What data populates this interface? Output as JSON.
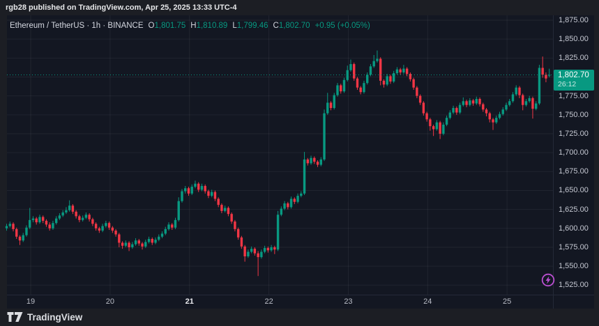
{
  "header": {
    "text": "rgb28 published on TradingView.com, Apr 25, 2025 13:33 UTC-4"
  },
  "legend": {
    "title": "Ethereum / TetherUS · 1h · BINANCE",
    "ohlc": [
      {
        "label": "O",
        "value": "1,801.75"
      },
      {
        "label": "H",
        "value": "1,810.89"
      },
      {
        "label": "L",
        "value": "1,799.46"
      },
      {
        "label": "C",
        "value": "1,802.70"
      }
    ],
    "change": "+0.95 (+0.05%)"
  },
  "last_price": {
    "value": "1,802.70",
    "countdown": "26:12"
  },
  "price_axis": {
    "labels": [
      {
        "text": "1,875.00",
        "price": 1875
      },
      {
        "text": "1,850.00",
        "price": 1850
      },
      {
        "text": "1,825.00",
        "price": 1825
      },
      {
        "text": "1,775.00",
        "price": 1775
      },
      {
        "text": "1,750.00",
        "price": 1750
      },
      {
        "text": "1,725.00",
        "price": 1725
      },
      {
        "text": "1,700.00",
        "price": 1700
      },
      {
        "text": "1,675.00",
        "price": 1675
      },
      {
        "text": "1,650.00",
        "price": 1650
      },
      {
        "text": "1,625.00",
        "price": 1625
      },
      {
        "text": "1,600.00",
        "price": 1600
      },
      {
        "text": "1,575.00",
        "price": 1575
      },
      {
        "text": "1,550.00",
        "price": 1550
      },
      {
        "text": "1,525.00",
        "price": 1525
      }
    ]
  },
  "time_axis": {
    "labels": [
      {
        "text": "19",
        "emphasis": false
      },
      {
        "text": "20",
        "emphasis": false
      },
      {
        "text": "21",
        "emphasis": true
      },
      {
        "text": "22",
        "emphasis": false
      },
      {
        "text": "23",
        "emphasis": false
      },
      {
        "text": "24",
        "emphasis": false
      },
      {
        "text": "25",
        "emphasis": false
      }
    ]
  },
  "footer": {
    "brand": "TradingView"
  },
  "colors": {
    "up": "#089981",
    "down": "#f23645",
    "badge": "#089981",
    "boost_purple": "#bb4fd1"
  },
  "chart_data": {
    "type": "candlestick",
    "symbol": "Ethereum / TetherUS",
    "exchange": "BINANCE",
    "interval": "1h",
    "title": "Ethereum / TetherUS · 1h · BINANCE",
    "y_axis": {
      "min": 1525,
      "max": 1875,
      "step": 25
    },
    "x_axis": {
      "labels": [
        "19",
        "20",
        "21",
        "22",
        "23",
        "24",
        "25"
      ],
      "unit": "day of April 2025"
    },
    "grid": true,
    "last": {
      "open": 1801.75,
      "high": 1810.89,
      "low": 1799.46,
      "close": 1802.7,
      "change": 0.95,
      "change_pct": "+0.05%"
    },
    "candles": [
      [
        1600,
        1606,
        1597,
        1603
      ],
      [
        1603,
        1609,
        1601,
        1606
      ],
      [
        1606,
        1608,
        1596,
        1599
      ],
      [
        1599,
        1601,
        1586,
        1589
      ],
      [
        1589,
        1591,
        1578,
        1584
      ],
      [
        1584,
        1594,
        1582,
        1591
      ],
      [
        1591,
        1604,
        1589,
        1601
      ],
      [
        1601,
        1627,
        1599,
        1611
      ],
      [
        1611,
        1616,
        1608,
        1613
      ],
      [
        1613,
        1615,
        1605,
        1608
      ],
      [
        1608,
        1618,
        1606,
        1615
      ],
      [
        1615,
        1617,
        1607,
        1610
      ],
      [
        1610,
        1612,
        1602,
        1605
      ],
      [
        1605,
        1608,
        1597,
        1600
      ],
      [
        1600,
        1610,
        1598,
        1607
      ],
      [
        1607,
        1616,
        1605,
        1613
      ],
      [
        1613,
        1620,
        1611,
        1617
      ],
      [
        1617,
        1624,
        1615,
        1621
      ],
      [
        1621,
        1628,
        1619,
        1624
      ],
      [
        1624,
        1637,
        1622,
        1630
      ],
      [
        1630,
        1632,
        1619,
        1622
      ],
      [
        1622,
        1624,
        1613,
        1616
      ],
      [
        1616,
        1618,
        1608,
        1611
      ],
      [
        1611,
        1617,
        1609,
        1614
      ],
      [
        1614,
        1621,
        1612,
        1618
      ],
      [
        1618,
        1620,
        1609,
        1612
      ],
      [
        1612,
        1614,
        1603,
        1606
      ],
      [
        1606,
        1608,
        1597,
        1600
      ],
      [
        1600,
        1602,
        1594,
        1597
      ],
      [
        1597,
        1606,
        1595,
        1603
      ],
      [
        1603,
        1610,
        1601,
        1607
      ],
      [
        1607,
        1609,
        1598,
        1601
      ],
      [
        1601,
        1603,
        1594,
        1597
      ],
      [
        1597,
        1599,
        1589,
        1592
      ],
      [
        1592,
        1594,
        1575,
        1581
      ],
      [
        1581,
        1583,
        1573,
        1577
      ],
      [
        1577,
        1584,
        1575,
        1581
      ],
      [
        1581,
        1583,
        1570,
        1575
      ],
      [
        1575,
        1582,
        1573,
        1579
      ],
      [
        1579,
        1587,
        1577,
        1584
      ],
      [
        1584,
        1586,
        1577,
        1580
      ],
      [
        1580,
        1582,
        1572,
        1576
      ],
      [
        1576,
        1585,
        1574,
        1582
      ],
      [
        1582,
        1589,
        1580,
        1586
      ],
      [
        1586,
        1588,
        1578,
        1581
      ],
      [
        1581,
        1588,
        1579,
        1585
      ],
      [
        1585,
        1592,
        1583,
        1589
      ],
      [
        1589,
        1596,
        1587,
        1593
      ],
      [
        1593,
        1602,
        1591,
        1599
      ],
      [
        1599,
        1608,
        1597,
        1605
      ],
      [
        1605,
        1607,
        1598,
        1601
      ],
      [
        1601,
        1614,
        1599,
        1611
      ],
      [
        1611,
        1641,
        1609,
        1636
      ],
      [
        1636,
        1652,
        1634,
        1649
      ],
      [
        1649,
        1656,
        1646,
        1653
      ],
      [
        1653,
        1655,
        1643,
        1646
      ],
      [
        1646,
        1658,
        1644,
        1655
      ],
      [
        1655,
        1663,
        1653,
        1659
      ],
      [
        1659,
        1661,
        1648,
        1651
      ],
      [
        1651,
        1659,
        1649,
        1656
      ],
      [
        1656,
        1658,
        1646,
        1649
      ],
      [
        1649,
        1651,
        1640,
        1643
      ],
      [
        1643,
        1651,
        1641,
        1648
      ],
      [
        1648,
        1650,
        1636,
        1639
      ],
      [
        1639,
        1641,
        1628,
        1631
      ],
      [
        1631,
        1633,
        1620,
        1623
      ],
      [
        1623,
        1630,
        1621,
        1627
      ],
      [
        1627,
        1629,
        1616,
        1619
      ],
      [
        1619,
        1621,
        1606,
        1609
      ],
      [
        1609,
        1611,
        1596,
        1599
      ],
      [
        1599,
        1601,
        1585,
        1588
      ],
      [
        1588,
        1590,
        1573,
        1576
      ],
      [
        1576,
        1578,
        1556,
        1563
      ],
      [
        1563,
        1572,
        1561,
        1569
      ],
      [
        1569,
        1576,
        1567,
        1573
      ],
      [
        1573,
        1575,
        1564,
        1567
      ],
      [
        1567,
        1570,
        1537,
        1562
      ],
      [
        1562,
        1572,
        1560,
        1569
      ],
      [
        1569,
        1577,
        1567,
        1574
      ],
      [
        1574,
        1576,
        1568,
        1571
      ],
      [
        1571,
        1578,
        1569,
        1575
      ],
      [
        1575,
        1577,
        1566,
        1572
      ],
      [
        1572,
        1623,
        1570,
        1618
      ],
      [
        1618,
        1629,
        1616,
        1626
      ],
      [
        1626,
        1636,
        1624,
        1633
      ],
      [
        1633,
        1635,
        1625,
        1628
      ],
      [
        1628,
        1642,
        1626,
        1639
      ],
      [
        1639,
        1641,
        1632,
        1635
      ],
      [
        1635,
        1646,
        1633,
        1643
      ],
      [
        1643,
        1649,
        1641,
        1646
      ],
      [
        1646,
        1701,
        1644,
        1691
      ],
      [
        1691,
        1693,
        1683,
        1686
      ],
      [
        1686,
        1696,
        1684,
        1693
      ],
      [
        1693,
        1695,
        1685,
        1688
      ],
      [
        1688,
        1690,
        1681,
        1684
      ],
      [
        1684,
        1694,
        1682,
        1691
      ],
      [
        1691,
        1757,
        1689,
        1752
      ],
      [
        1752,
        1779,
        1750,
        1766
      ],
      [
        1766,
        1768,
        1756,
        1759
      ],
      [
        1759,
        1779,
        1757,
        1776
      ],
      [
        1776,
        1792,
        1774,
        1789
      ],
      [
        1789,
        1791,
        1778,
        1781
      ],
      [
        1781,
        1799,
        1779,
        1796
      ],
      [
        1796,
        1815,
        1794,
        1809
      ],
      [
        1809,
        1823,
        1807,
        1817
      ],
      [
        1817,
        1819,
        1795,
        1798
      ],
      [
        1798,
        1800,
        1783,
        1786
      ],
      [
        1786,
        1788,
        1777,
        1780
      ],
      [
        1780,
        1795,
        1778,
        1792
      ],
      [
        1792,
        1806,
        1790,
        1803
      ],
      [
        1803,
        1817,
        1801,
        1814
      ],
      [
        1814,
        1829,
        1812,
        1821
      ],
      [
        1821,
        1835,
        1819,
        1824
      ],
      [
        1824,
        1826,
        1789,
        1795
      ],
      [
        1795,
        1797,
        1786,
        1790
      ],
      [
        1790,
        1804,
        1788,
        1801
      ],
      [
        1801,
        1803,
        1791,
        1794
      ],
      [
        1794,
        1808,
        1792,
        1805
      ],
      [
        1805,
        1813,
        1803,
        1810
      ],
      [
        1810,
        1812,
        1803,
        1806
      ],
      [
        1806,
        1816,
        1804,
        1811
      ],
      [
        1811,
        1813,
        1801,
        1804
      ],
      [
        1804,
        1806,
        1794,
        1797
      ],
      [
        1797,
        1799,
        1783,
        1786
      ],
      [
        1786,
        1788,
        1772,
        1775
      ],
      [
        1775,
        1777,
        1763,
        1766
      ],
      [
        1766,
        1768,
        1749,
        1752
      ],
      [
        1752,
        1754,
        1741,
        1744
      ],
      [
        1744,
        1746,
        1729,
        1735
      ],
      [
        1735,
        1737,
        1722,
        1731
      ],
      [
        1731,
        1743,
        1729,
        1740
      ],
      [
        1740,
        1742,
        1718,
        1725
      ],
      [
        1725,
        1740,
        1723,
        1737
      ],
      [
        1737,
        1749,
        1735,
        1746
      ],
      [
        1746,
        1756,
        1744,
        1753
      ],
      [
        1753,
        1762,
        1751,
        1759
      ],
      [
        1759,
        1761,
        1750,
        1753
      ],
      [
        1753,
        1766,
        1751,
        1763
      ],
      [
        1763,
        1773,
        1761,
        1768
      ],
      [
        1768,
        1770,
        1760,
        1763
      ],
      [
        1763,
        1772,
        1761,
        1769
      ],
      [
        1769,
        1771,
        1762,
        1765
      ],
      [
        1765,
        1774,
        1763,
        1771
      ],
      [
        1771,
        1773,
        1761,
        1764
      ],
      [
        1764,
        1766,
        1754,
        1757
      ],
      [
        1757,
        1759,
        1748,
        1752
      ],
      [
        1752,
        1754,
        1740,
        1744
      ],
      [
        1744,
        1746,
        1730,
        1740
      ],
      [
        1740,
        1749,
        1738,
        1746
      ],
      [
        1746,
        1754,
        1744,
        1751
      ],
      [
        1751,
        1760,
        1749,
        1757
      ],
      [
        1757,
        1766,
        1755,
        1763
      ],
      [
        1763,
        1771,
        1761,
        1768
      ],
      [
        1768,
        1780,
        1766,
        1777
      ],
      [
        1777,
        1789,
        1775,
        1786
      ],
      [
        1786,
        1788,
        1772,
        1776
      ],
      [
        1776,
        1778,
        1756,
        1763
      ],
      [
        1763,
        1771,
        1761,
        1768
      ],
      [
        1768,
        1775,
        1766,
        1772
      ],
      [
        1772,
        1774,
        1745,
        1758
      ],
      [
        1758,
        1768,
        1756,
        1765
      ],
      [
        1765,
        1816,
        1763,
        1812
      ],
      [
        1812,
        1827,
        1799,
        1803
      ],
      [
        1803,
        1806,
        1793,
        1798
      ],
      [
        1801.75,
        1810.89,
        1799.46,
        1802.7
      ]
    ]
  }
}
